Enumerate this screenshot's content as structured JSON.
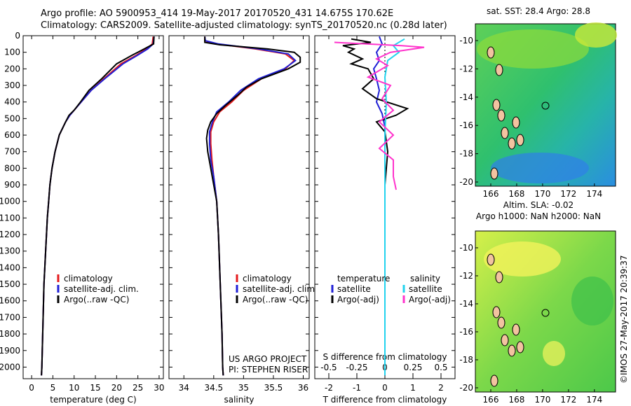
{
  "header": {
    "line1": "Argo profile: AO 5900953_414 19-May-2017 20170520_431 14.675S 170.62E",
    "line2": "Climatology: CARS2009. Satellite-adjusted climatology: synTS_20170520.nc (0.28d later)"
  },
  "side_stamp": "©IMOS 27-May-2017 20:39:37",
  "credit": {
    "line1": "US ARGO PROJECT",
    "line2": "PI: STEPHEN RISER"
  },
  "colors": {
    "climatology": "#e41a1c",
    "satellite": "#1f1fd6",
    "argo": "#000000",
    "sat_salinity": "#22d3ee",
    "argo_salinity": "#ff33cc"
  },
  "chart_data": [
    {
      "type": "line",
      "xlabel": "temperature (deg C)",
      "ylabel": "",
      "xlim": [
        -2,
        31
      ],
      "ylim": [
        2070,
        0
      ],
      "xticks": [
        "0",
        "5",
        "10",
        "15",
        "20",
        "25",
        "30"
      ],
      "yticks": [
        "0",
        "100",
        "200",
        "300",
        "400",
        "500",
        "600",
        "700",
        "800",
        "900",
        "1000",
        "1100",
        "1200",
        "1300",
        "1400",
        "1500",
        "1600",
        "1700",
        "1800",
        "1900",
        "2000"
      ],
      "legend": [
        "climatology",
        "satellite-adj. clim.",
        "Argo(..raw -QC)"
      ],
      "series": [
        {
          "name": "climatology",
          "points": [
            [
              28.6,
              5
            ],
            [
              28.4,
              50
            ],
            [
              27,
              80
            ],
            [
              24.5,
              120
            ],
            [
              21,
              170
            ],
            [
              17,
              260
            ],
            [
              14,
              330
            ],
            [
              11,
              420
            ],
            [
              9,
              480
            ],
            [
              8,
              520
            ],
            [
              6.5,
              600
            ],
            [
              5.5,
              700
            ],
            [
              4.8,
              800
            ],
            [
              4.3,
              900
            ],
            [
              4,
              1000
            ],
            [
              3.7,
              1100
            ],
            [
              3.5,
              1200
            ],
            [
              3.3,
              1300
            ],
            [
              3.1,
              1400
            ],
            [
              2.9,
              1500
            ],
            [
              2.8,
              1600
            ],
            [
              2.7,
              1700
            ],
            [
              2.6,
              1800
            ],
            [
              2.5,
              1900
            ],
            [
              2.4,
              2000
            ],
            [
              2.3,
              2050
            ]
          ]
        },
        {
          "name": "satellite-adj. clim.",
          "points": [
            [
              28.8,
              5
            ],
            [
              28.6,
              50
            ],
            [
              27.3,
              80
            ],
            [
              24.8,
              120
            ],
            [
              21.5,
              170
            ],
            [
              17.2,
              260
            ],
            [
              14,
              330
            ],
            [
              11,
              420
            ],
            [
              9,
              480
            ],
            [
              8,
              520
            ],
            [
              6.5,
              600
            ],
            [
              5.5,
              700
            ],
            [
              4.8,
              800
            ],
            [
              4.3,
              900
            ],
            [
              4,
              1000
            ],
            [
              3.7,
              1100
            ],
            [
              3.5,
              1200
            ],
            [
              3.3,
              1300
            ],
            [
              3.1,
              1400
            ],
            [
              2.9,
              1500
            ],
            [
              2.8,
              1600
            ],
            [
              2.7,
              1700
            ],
            [
              2.6,
              1800
            ],
            [
              2.5,
              1900
            ],
            [
              2.4,
              2000
            ],
            [
              2.3,
              2050
            ]
          ]
        },
        {
          "name": "Argo(..raw -QC)",
          "points": [
            [
              28.8,
              5
            ],
            [
              28.7,
              50
            ],
            [
              26.5,
              80
            ],
            [
              23.5,
              120
            ],
            [
              20,
              170
            ],
            [
              16.5,
              260
            ],
            [
              13.5,
              330
            ],
            [
              11.5,
              400
            ],
            [
              10,
              450
            ],
            [
              8.8,
              480
            ],
            [
              8,
              520
            ],
            [
              6.5,
              600
            ],
            [
              5.5,
              700
            ],
            [
              4.8,
              800
            ],
            [
              4.3,
              900
            ],
            [
              4,
              1000
            ],
            [
              3.7,
              1100
            ],
            [
              3.5,
              1200
            ],
            [
              3.3,
              1300
            ],
            [
              3.1,
              1400
            ],
            [
              2.9,
              1500
            ],
            [
              2.8,
              1600
            ],
            [
              2.7,
              1700
            ],
            [
              2.6,
              1800
            ],
            [
              2.5,
              1900
            ],
            [
              2.4,
              2000
            ],
            [
              2.3,
              2050
            ]
          ]
        }
      ]
    },
    {
      "type": "line",
      "xlabel": "salinity",
      "ylabel": "",
      "xlim": [
        33.75,
        36.1
      ],
      "ylim": [
        2070,
        0
      ],
      "xticks": [
        "34",
        "34.5",
        "35",
        "35.5",
        "36"
      ],
      "legend": [
        "climatology",
        "satellite-adj. clim.",
        "Argo(..raw -QC)"
      ],
      "series": [
        {
          "name": "climatology",
          "points": [
            [
              34.35,
              5
            ],
            [
              34.35,
              30
            ],
            [
              34.55,
              50
            ],
            [
              35.2,
              80
            ],
            [
              35.7,
              110
            ],
            [
              35.85,
              150
            ],
            [
              35.7,
              200
            ],
            [
              35.3,
              260
            ],
            [
              35,
              330
            ],
            [
              34.8,
              400
            ],
            [
              34.6,
              460
            ],
            [
              34.5,
              520
            ],
            [
              34.45,
              580
            ],
            [
              34.45,
              650
            ],
            [
              34.47,
              750
            ],
            [
              34.5,
              850
            ],
            [
              34.55,
              1000
            ],
            [
              34.58,
              1200
            ],
            [
              34.6,
              1400
            ],
            [
              34.62,
              1600
            ],
            [
              34.64,
              1800
            ],
            [
              34.65,
              2000
            ],
            [
              34.66,
              2050
            ]
          ]
        },
        {
          "name": "satellite-adj. clim.",
          "points": [
            [
              34.35,
              5
            ],
            [
              34.36,
              30
            ],
            [
              34.58,
              50
            ],
            [
              35.25,
              80
            ],
            [
              35.75,
              110
            ],
            [
              35.87,
              150
            ],
            [
              35.68,
              200
            ],
            [
              35.25,
              260
            ],
            [
              34.95,
              330
            ],
            [
              34.75,
              400
            ],
            [
              34.55,
              460
            ],
            [
              34.48,
              520
            ],
            [
              34.43,
              580
            ],
            [
              34.43,
              650
            ],
            [
              34.45,
              750
            ],
            [
              34.5,
              850
            ],
            [
              34.55,
              1000
            ],
            [
              34.58,
              1200
            ],
            [
              34.6,
              1400
            ],
            [
              34.62,
              1600
            ],
            [
              34.64,
              1800
            ],
            [
              34.65,
              2000
            ],
            [
              34.66,
              2050
            ]
          ]
        },
        {
          "name": "Argo(..raw -QC)",
          "points": [
            [
              34.35,
              5
            ],
            [
              34.35,
              40
            ],
            [
              34.6,
              55
            ],
            [
              35.4,
              80
            ],
            [
              35.85,
              100
            ],
            [
              35.95,
              130
            ],
            [
              35.95,
              160
            ],
            [
              35.75,
              200
            ],
            [
              35.3,
              260
            ],
            [
              35.05,
              310
            ],
            [
              34.9,
              360
            ],
            [
              34.7,
              420
            ],
            [
              34.55,
              470
            ],
            [
              34.45,
              520
            ],
            [
              34.4,
              570
            ],
            [
              34.38,
              620
            ],
            [
              34.4,
              700
            ],
            [
              34.45,
              800
            ],
            [
              34.5,
              900
            ],
            [
              34.55,
              1000
            ],
            [
              34.58,
              1200
            ],
            [
              34.6,
              1400
            ],
            [
              34.62,
              1600
            ],
            [
              34.64,
              1800
            ],
            [
              34.65,
              2000
            ],
            [
              34.66,
              2050
            ]
          ]
        }
      ]
    },
    {
      "type": "line",
      "xlabel": "T difference from climatology",
      "x2label": "S difference from climatology",
      "xlim": [
        -2.5,
        2.5
      ],
      "x2lim": [
        -0.625,
        0.625
      ],
      "ylim": [
        2070,
        0
      ],
      "xticks": [
        "-2",
        "-1",
        "0",
        "1",
        "2"
      ],
      "x2ticks": [
        "-0.5",
        "-0.25",
        "0",
        "0.25",
        "0.5"
      ],
      "legend": [
        "temperature",
        "satellite",
        "Argo(-adj)",
        "salinity",
        "satellite",
        "Argo(-adj)"
      ],
      "series": [
        {
          "name": "temperature satellite",
          "points": [
            [
              -0.2,
              5
            ],
            [
              -0.1,
              50
            ],
            [
              -0.3,
              100
            ],
            [
              -0.2,
              150
            ],
            [
              -0.4,
              200
            ],
            [
              -0.3,
              260
            ],
            [
              -0.2,
              330
            ],
            [
              -0.3,
              400
            ],
            [
              -0.1,
              470
            ],
            [
              0,
              550
            ],
            [
              0,
              700
            ],
            [
              0,
              1000
            ],
            [
              0,
              1500
            ],
            [
              0,
              2050
            ]
          ]
        },
        {
          "name": "temperature Argo(-adj)",
          "points": [
            [
              -1.2,
              20
            ],
            [
              -0.5,
              40
            ],
            [
              -1.5,
              60
            ],
            [
              -1.1,
              80
            ],
            [
              -1.3,
              100
            ],
            [
              -0.8,
              140
            ],
            [
              -1.2,
              170
            ],
            [
              -0.6,
              200
            ],
            [
              -0.4,
              260
            ],
            [
              -0.8,
              320
            ],
            [
              -0.3,
              380
            ],
            [
              0.8,
              440
            ],
            [
              0.4,
              480
            ],
            [
              -0.3,
              520
            ],
            [
              0,
              580
            ],
            [
              0.1,
              700
            ],
            [
              0,
              900
            ],
            [
              0,
              1000
            ]
          ]
        },
        {
          "name": "salinity satellite",
          "points": [
            [
              0.7,
              20
            ],
            [
              0.3,
              60
            ],
            [
              0.5,
              100
            ],
            [
              0.1,
              150
            ],
            [
              0,
              250
            ],
            [
              0.05,
              400
            ],
            [
              0,
              600
            ],
            [
              0,
              900
            ],
            [
              0,
              1500
            ],
            [
              0,
              2050
            ]
          ]
        },
        {
          "name": "salinity Argo(-adj)",
          "points": [
            [
              -1.8,
              40
            ],
            [
              0.6,
              60
            ],
            [
              1.4,
              70
            ],
            [
              0.2,
              100
            ],
            [
              -0.3,
              140
            ],
            [
              0.1,
              180
            ],
            [
              -0.6,
              250
            ],
            [
              0.2,
              300
            ],
            [
              -0.1,
              380
            ],
            [
              0.3,
              450
            ],
            [
              -0.2,
              520
            ],
            [
              0.3,
              600
            ],
            [
              -0.2,
              680
            ],
            [
              0.3,
              750
            ],
            [
              0.3,
              850
            ],
            [
              0.4,
              930
            ]
          ]
        }
      ]
    }
  ],
  "maps": [
    {
      "title": "sat. SST: 28.4  Argo: 28.8",
      "subtitle": "",
      "yticks": [
        "-10",
        "-12",
        "-14",
        "-16",
        "-18",
        "-20"
      ],
      "xticks": [
        "166",
        "168",
        "170",
        "172",
        "174"
      ]
    },
    {
      "title": "Altim. SLA: -0.02",
      "subtitle": "Argo h1000: NaN h2000: NaN",
      "yticks": [
        "-10",
        "-12",
        "-14",
        "-16",
        "-18",
        "-20"
      ],
      "xticks": [
        "166",
        "168",
        "170",
        "172",
        "174"
      ]
    }
  ]
}
